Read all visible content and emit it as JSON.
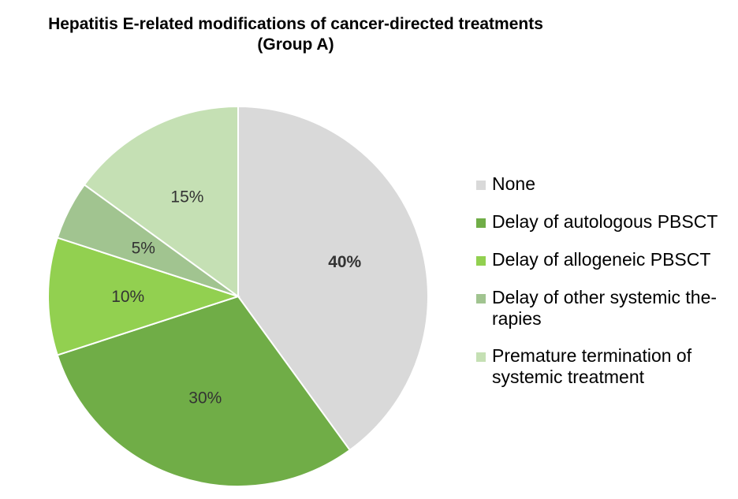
{
  "chart_data": {
    "type": "pie",
    "title": [
      "Hepatitis E-related modifications of cancer-directed treatments",
      "(Group A)"
    ],
    "slices": [
      {
        "label": "None",
        "value": 40,
        "display": "40%",
        "color": "#d9d9d9",
        "bold": true
      },
      {
        "label": "Delay of autologous PBSCT",
        "value": 30,
        "display": "30%",
        "color": "#70ad47",
        "bold": false
      },
      {
        "label": "Delay of allogeneic PBSCT",
        "value": 10,
        "display": "10%",
        "color": "#92d050",
        "bold": false
      },
      {
        "label": "Delay of other systemic the-rapies",
        "value": 5,
        "display": "5%",
        "color": "#a1c490",
        "bold": false
      },
      {
        "label": "Premature termination of systemic treatment",
        "value": 15,
        "display": "15%",
        "color": "#c5e0b4",
        "bold": false
      }
    ],
    "legend_position": "right"
  }
}
